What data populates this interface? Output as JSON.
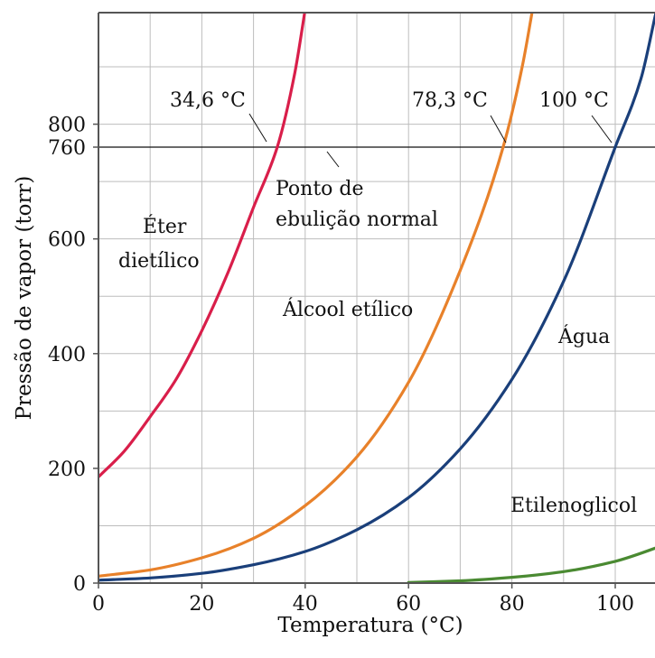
{
  "chart_data": {
    "type": "line",
    "xlabel": "Temperatura (°C)",
    "ylabel": "Pressão de vapor (torr)",
    "xlim": [
      0,
      110
    ],
    "ylim": [
      0,
      1000
    ],
    "x_ticks": [
      0,
      20,
      40,
      60,
      80,
      100
    ],
    "x_tick_labels": [
      "0",
      "20",
      "40",
      "60",
      "80",
      "100"
    ],
    "y_ticks": [
      0,
      200,
      400,
      600,
      760,
      800
    ],
    "y_tick_labels": [
      "0",
      "200",
      "400",
      "600",
      "760",
      "800"
    ],
    "grid": true,
    "reference_line": {
      "y": 760,
      "label": "Ponto de ebulição normal",
      "label_lines": [
        "Ponto de",
        "ebulição normal"
      ]
    },
    "series": [
      {
        "name": "Éter dietílico",
        "label_lines": [
          "Éter",
          "dietílico"
        ],
        "color": "#d91e4a",
        "boiling_point_label": "34,6 °C",
        "boiling_point": 34.6,
        "x": [
          0,
          5,
          10,
          15,
          20,
          25,
          30,
          34.6,
          38,
          40
        ],
        "y": [
          185,
          230,
          290,
          355,
          440,
          540,
          655,
          760,
          890,
          1000
        ]
      },
      {
        "name": "Álcool etílico",
        "label_lines": [
          "Álcool etílico"
        ],
        "color": "#e8812a",
        "boiling_point_label": "78,3 °C",
        "boiling_point": 78.3,
        "x": [
          0,
          10,
          20,
          30,
          40,
          50,
          60,
          70,
          78.3,
          82,
          84
        ],
        "y": [
          12,
          23,
          44,
          78,
          135,
          220,
          350,
          545,
          760,
          900,
          1000
        ]
      },
      {
        "name": "Água",
        "label_lines": [
          "Água"
        ],
        "color": "#1a3f7a",
        "boiling_point_label": "100 °C",
        "boiling_point": 100,
        "x": [
          0,
          10,
          20,
          30,
          40,
          50,
          60,
          70,
          80,
          90,
          100,
          105,
          108
        ],
        "y": [
          5,
          9,
          17,
          32,
          55,
          93,
          149,
          234,
          355,
          526,
          760,
          880,
          1000
        ]
      },
      {
        "name": "Etilenoglicol",
        "label_lines": [
          "Etilenoglicol"
        ],
        "color": "#4a8a32",
        "x": [
          60,
          70,
          80,
          90,
          100,
          110
        ],
        "y": [
          1,
          4,
          10,
          20,
          38,
          68
        ]
      }
    ]
  }
}
